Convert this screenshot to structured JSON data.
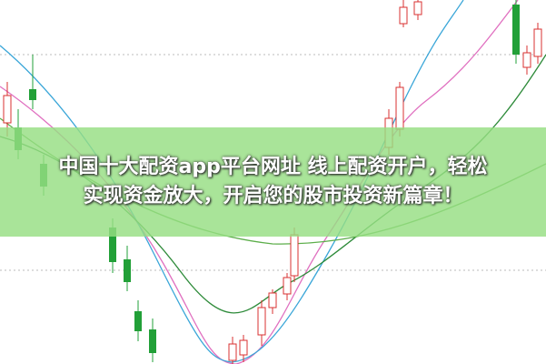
{
  "banner": {
    "lines": [
      "中国十大配资app平台网址 线上配资开户，轻松",
      "实现资金放大，开启您的股市投资新篇章！"
    ]
  }
}
